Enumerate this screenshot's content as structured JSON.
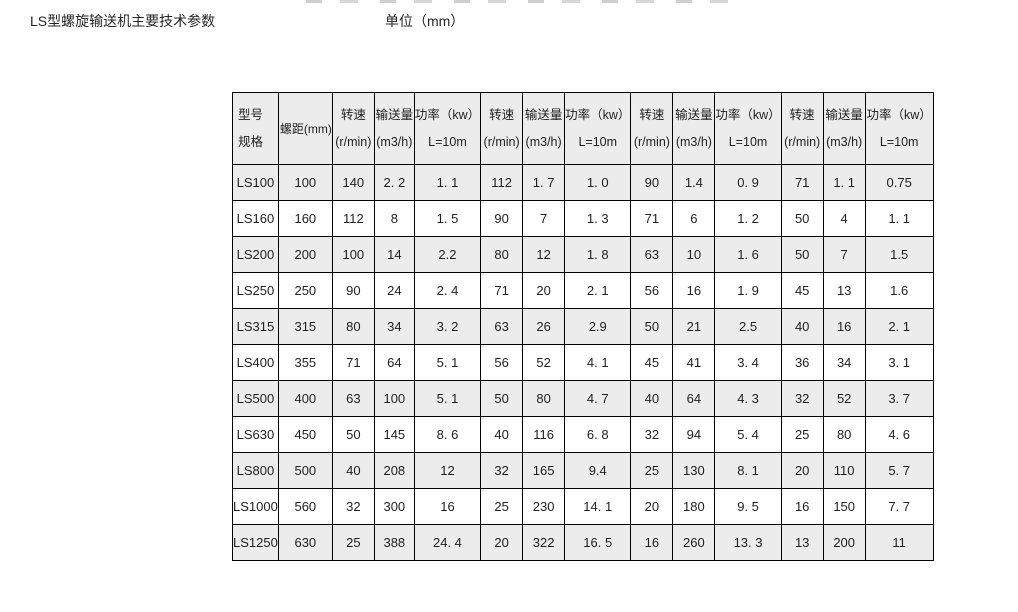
{
  "page": {
    "title": "LS型螺旋输送机主要技术参数",
    "unit_label": "单位（mm）"
  },
  "table": {
    "header": {
      "model_line1": "型号",
      "model_line2": "规格",
      "pitch_label": "螺距(mm)",
      "group_count": 4,
      "group_columns": [
        {
          "line1": "转速",
          "line2": "(r/min)"
        },
        {
          "line1": "输送量",
          "line2": "(m3/h)"
        },
        {
          "line1": "功率（kw）",
          "line2": "L=10m"
        }
      ]
    },
    "rows": [
      [
        "LS100",
        "100",
        "140",
        "2. 2",
        "1. 1",
        "112",
        "1. 7",
        "1. 0",
        "90",
        "1.4",
        "0. 9",
        "71",
        "1. 1",
        "0.75"
      ],
      [
        "LS160",
        "160",
        "112",
        "8",
        "1. 5",
        "90",
        "7",
        "1. 3",
        "71",
        "6",
        "1. 2",
        "50",
        "4",
        "1. 1"
      ],
      [
        "LS200",
        "200",
        "100",
        "14",
        "2.2",
        "80",
        "12",
        "1. 8",
        "63",
        "10",
        "1. 6",
        "50",
        "7",
        "1.5"
      ],
      [
        "LS250",
        "250",
        "90",
        "24",
        "2. 4",
        "71",
        "20",
        "2. 1",
        "56",
        "16",
        "1. 9",
        "45",
        "13",
        "1.6"
      ],
      [
        "LS315",
        "315",
        "80",
        "34",
        "3. 2",
        "63",
        "26",
        "2.9",
        "50",
        "21",
        "2.5",
        "40",
        "16",
        "2. 1"
      ],
      [
        "LS400",
        "355",
        "71",
        "64",
        "5. 1",
        "56",
        "52",
        "4. 1",
        "45",
        "41",
        "3. 4",
        "36",
        "34",
        "3. 1"
      ],
      [
        "LS500",
        "400",
        "63",
        "100",
        "5. 1",
        "50",
        "80",
        "4. 7",
        "40",
        "64",
        "4. 3",
        "32",
        "52",
        "3. 7"
      ],
      [
        "LS630",
        "450",
        "50",
        "145",
        "8. 6",
        "40",
        "116",
        "6. 8",
        "32",
        "94",
        "5. 4",
        "25",
        "80",
        "4. 6"
      ],
      [
        "LS800",
        "500",
        "40",
        "208",
        "12",
        "32",
        "165",
        "9.4",
        "25",
        "130",
        "8. 1",
        "20",
        "110",
        "5. 7"
      ],
      [
        "LS1000",
        "560",
        "32",
        "300",
        "16",
        "25",
        "230",
        "14. 1",
        "20",
        "180",
        "9. 5",
        "16",
        "150",
        "7. 7"
      ],
      [
        "LS1250",
        "630",
        "25",
        "388",
        "24. 4",
        "20",
        "322",
        "16. 5",
        "16",
        "260",
        "13. 3",
        "13",
        "200",
        "11"
      ]
    ]
  }
}
